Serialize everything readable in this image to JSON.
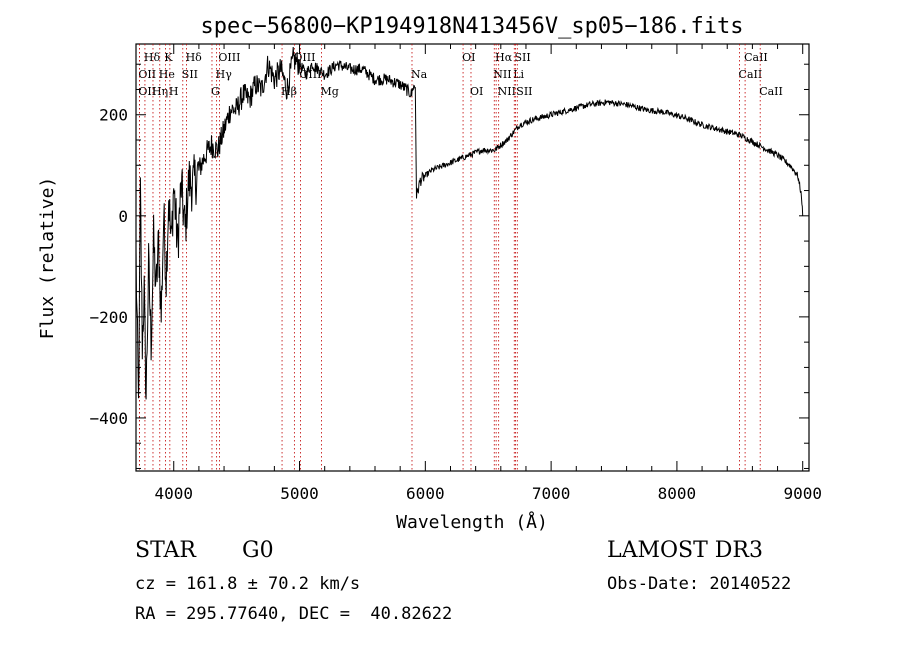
{
  "chart_data": {
    "type": "line",
    "title": "spec−56800−KP194918N413456V_sp05−186.fits",
    "xlabel": "Wavelength (Å)",
    "ylabel": "Flux (relative)",
    "xlim": [
      3700,
      9050
    ],
    "ylim": [
      -505,
      340
    ],
    "xticks": [
      4000,
      5000,
      6000,
      7000,
      8000,
      9000
    ],
    "yticks": [
      -400,
      -200,
      0,
      200
    ],
    "xtick_labels": [
      "4000",
      "5000",
      "6000",
      "7000",
      "8000",
      "9000"
    ],
    "ytick_labels": [
      "−400",
      "−200",
      "0",
      "200"
    ],
    "series": [
      {
        "name": "flux",
        "anchors": [
          [
            3700,
            -80
          ],
          [
            3720,
            -380
          ],
          [
            3735,
            40
          ],
          [
            3750,
            -250
          ],
          [
            3765,
            -150
          ],
          [
            3780,
            -360
          ],
          [
            3800,
            -100
          ],
          [
            3820,
            -250
          ],
          [
            3840,
            -50
          ],
          [
            3860,
            -150
          ],
          [
            3880,
            -50
          ],
          [
            3900,
            -200
          ],
          [
            3920,
            0
          ],
          [
            3940,
            -120
          ],
          [
            3960,
            40
          ],
          [
            3980,
            -60
          ],
          [
            4000,
            60
          ],
          [
            4030,
            -60
          ],
          [
            4060,
            60
          ],
          [
            4090,
            -30
          ],
          [
            4120,
            70
          ],
          [
            4150,
            60
          ],
          [
            4200,
            90
          ],
          [
            4250,
            120
          ],
          [
            4300,
            140
          ],
          [
            4350,
            130
          ],
          [
            4400,
            170
          ],
          [
            4450,
            210
          ],
          [
            4500,
            210
          ],
          [
            4550,
            240
          ],
          [
            4600,
            230
          ],
          [
            4650,
            260
          ],
          [
            4700,
            250
          ],
          [
            4750,
            300
          ],
          [
            4800,
            270
          ],
          [
            4850,
            290
          ],
          [
            4900,
            250
          ],
          [
            4950,
            310
          ],
          [
            5000,
            300
          ],
          [
            5050,
            280
          ],
          [
            5100,
            300
          ],
          [
            5150,
            290
          ],
          [
            5200,
            280
          ],
          [
            5300,
            300
          ],
          [
            5400,
            290
          ],
          [
            5500,
            290
          ],
          [
            5600,
            270
          ],
          [
            5700,
            270
          ],
          [
            5800,
            260
          ],
          [
            5850,
            250
          ],
          [
            5892,
            240
          ],
          [
            5900,
            255
          ],
          [
            5920,
            255
          ],
          [
            5930,
            40
          ],
          [
            5960,
            70
          ],
          [
            6050,
            90
          ],
          [
            6150,
            100
          ],
          [
            6250,
            110
          ],
          [
            6350,
            120
          ],
          [
            6450,
            130
          ],
          [
            6550,
            130
          ],
          [
            6650,
            150
          ],
          [
            6750,
            180
          ],
          [
            6850,
            190
          ],
          [
            7000,
            200
          ],
          [
            7150,
            210
          ],
          [
            7300,
            220
          ],
          [
            7450,
            225
          ],
          [
            7600,
            220
          ],
          [
            7750,
            210
          ],
          [
            7900,
            205
          ],
          [
            8050,
            195
          ],
          [
            8200,
            180
          ],
          [
            8350,
            170
          ],
          [
            8500,
            160
          ],
          [
            8650,
            140
          ],
          [
            8800,
            120
          ],
          [
            8900,
            100
          ],
          [
            8960,
            80
          ],
          [
            8990,
            40
          ],
          [
            9000,
            0
          ]
        ]
      }
    ],
    "line_markers": [
      {
        "name": "OII",
        "wavelength": 3727,
        "label": "OII",
        "row": 2,
        "align": "left"
      },
      {
        "name": "OII-2",
        "wavelength": 3727,
        "label": "OII",
        "row": 3,
        "align": "left"
      },
      {
        "name": "H-delta",
        "wavelength": 3771,
        "label": "Hδ",
        "row": 1,
        "align": "left"
      },
      {
        "name": "H-eta",
        "wavelength": 3835,
        "label": "Hη",
        "row": 3,
        "align": "left"
      },
      {
        "name": "He",
        "wavelength": 3889,
        "label": "He",
        "row": 2,
        "align": "left"
      },
      {
        "name": "K",
        "wavelength": 3934,
        "label": "K",
        "row": 1,
        "align": "left"
      },
      {
        "name": "H",
        "wavelength": 3969,
        "label": "H",
        "row": 3,
        "align": "left"
      },
      {
        "name": "SII-blue",
        "wavelength": 4072,
        "label": "SII",
        "row": 2,
        "align": "left"
      },
      {
        "name": "H-delta-2",
        "wavelength": 4102,
        "label": "Hδ",
        "row": 1,
        "align": "left"
      },
      {
        "name": "G",
        "wavelength": 4304,
        "label": "G",
        "row": 3,
        "align": "left"
      },
      {
        "name": "H-gamma",
        "wavelength": 4341,
        "label": "Hγ",
        "row": 2,
        "align": "left"
      },
      {
        "name": "OIII-blue",
        "wavelength": 4363,
        "label": "OIII",
        "row": 1,
        "align": "left"
      },
      {
        "name": "H-beta",
        "wavelength": 4861,
        "label": "Hβ",
        "row": 3,
        "align": "left"
      },
      {
        "name": "OIII-a",
        "wavelength": 4959,
        "label": "OIII",
        "row": 1,
        "align": "left"
      },
      {
        "name": "OIII-b",
        "wavelength": 5007,
        "label": "OIII",
        "row": 2,
        "align": "left"
      },
      {
        "name": "Mg",
        "wavelength": 5175,
        "label": "Mg",
        "row": 3,
        "align": "left"
      },
      {
        "name": "Na",
        "wavelength": 5894,
        "label": "Na",
        "row": 2,
        "align": "left"
      },
      {
        "name": "OI-a",
        "wavelength": 6300,
        "label": "OI",
        "row": 1,
        "align": "left"
      },
      {
        "name": "OI-b",
        "wavelength": 6363,
        "label": "OI",
        "row": 3,
        "align": "left"
      },
      {
        "name": "NII-a",
        "wavelength": 6548,
        "label": "NII",
        "row": 2,
        "align": "left"
      },
      {
        "name": "H-alpha",
        "wavelength": 6563,
        "label": "Hα",
        "row": 1,
        "align": "left"
      },
      {
        "name": "NII-b",
        "wavelength": 6583,
        "label": "NII",
        "row": 3,
        "align": "left"
      },
      {
        "name": "Li",
        "wavelength": 6707,
        "label": "Li",
        "row": 2,
        "align": "left"
      },
      {
        "name": "SII-a",
        "wavelength": 6717,
        "label": "SII",
        "row": 1,
        "align": "left"
      },
      {
        "name": "SII-b",
        "wavelength": 6731,
        "label": "SII",
        "row": 3,
        "align": "left"
      },
      {
        "name": "CaII-a",
        "wavelength": 8498,
        "label": "CaII",
        "row": 2,
        "align": "left"
      },
      {
        "name": "CaII-b",
        "wavelength": 8542,
        "label": "CaII",
        "row": 1,
        "align": "left"
      },
      {
        "name": "CaII-c",
        "wavelength": 8662,
        "label": "CaII",
        "row": 3,
        "align": "left"
      }
    ]
  },
  "info": {
    "object_class": "STAR",
    "subclass": "G0",
    "survey": "LAMOST DR3",
    "cz": "cz = 161.8 ± 70.2 km/s",
    "obs_date": "Obs-Date: 20140522",
    "coords": "RA = 295.77640, DEC =  40.82622"
  }
}
